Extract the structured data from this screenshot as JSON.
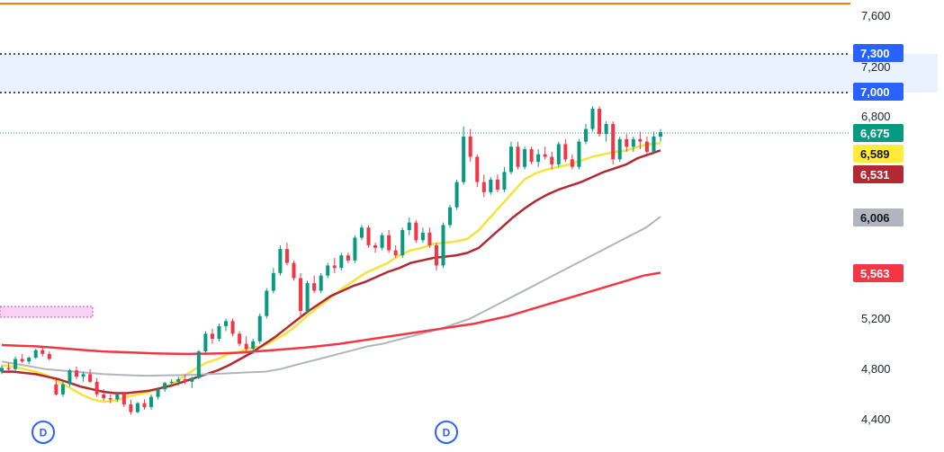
{
  "chart_data": {
    "type": "candlestick",
    "y_axis": {
      "ticks": [
        {
          "value": 7600,
          "label": "7,600"
        },
        {
          "value": 7200,
          "label": "7,200"
        },
        {
          "value": 6800,
          "label": "6,800"
        },
        {
          "value": 5200,
          "label": "5,200"
        },
        {
          "value": 4800,
          "label": "4,800"
        },
        {
          "value": 4400,
          "label": "4,400"
        }
      ],
      "range": [
        4330,
        7760
      ]
    },
    "price_levels": {
      "orange_line": 7700,
      "zone_top": 7300,
      "zone_bottom": 7000,
      "current_price": 6675,
      "pink_zone": [
        5250,
        5330
      ]
    },
    "badges": [
      {
        "name": "level-7300",
        "label": "7,300",
        "value": 7300,
        "color": "#2962ff",
        "text_color": "#ffffff"
      },
      {
        "name": "level-7000",
        "label": "7,000",
        "value": 7000,
        "color": "#2962ff",
        "text_color": "#ffffff"
      },
      {
        "name": "last-price",
        "label": "6,675",
        "value": 6675,
        "color": "#089981",
        "text_color": "#ffffff"
      },
      {
        "name": "ma-yellow",
        "label": "6,589",
        "value": 6589,
        "color": "#ffeb3b",
        "text_color": "#131722"
      },
      {
        "name": "ma-darkred",
        "label": "6,531",
        "value": 6531,
        "color": "#b22833",
        "text_color": "#ffffff"
      },
      {
        "name": "ma-gray",
        "label": "6,006",
        "value": 6006,
        "color": "#b2b5be",
        "text_color": "#131722"
      },
      {
        "name": "ma-red",
        "label": "5,563",
        "value": 5563,
        "color": "#f23645",
        "text_color": "#ffffff"
      }
    ],
    "series": [
      {
        "color": "#f5e33a",
        "values": [
          4830,
          4820,
          4800,
          4780,
          4750,
          4700,
          4650,
          4600,
          4560,
          4540,
          4550,
          4580,
          4600,
          4620,
          4650,
          4680,
          4740,
          4800,
          4850,
          4880,
          4920,
          4940,
          4970,
          4980,
          5030,
          5080,
          5150,
          5230,
          5300,
          5370,
          5440,
          5500,
          5560,
          5600,
          5640,
          5700,
          5740,
          5760,
          5790,
          5800,
          5810,
          5830,
          5900,
          6000,
          6100,
          6200,
          6300,
          6350,
          6380,
          6400,
          6420,
          6450,
          6480,
          6500,
          6520,
          6530,
          6560,
          6580,
          6589
        ]
      },
      {
        "color": "#b22833",
        "values": [
          4780,
          4780,
          4770,
          4760,
          4740,
          4720,
          4690,
          4660,
          4640,
          4620,
          4610,
          4610,
          4620,
          4630,
          4650,
          4670,
          4700,
          4730,
          4760,
          4790,
          4830,
          4880,
          4930,
          4990,
          5050,
          5120,
          5190,
          5260,
          5320,
          5380,
          5420,
          5460,
          5490,
          5530,
          5570,
          5600,
          5640,
          5660,
          5680,
          5690,
          5700,
          5720,
          5760,
          5840,
          5920,
          6000,
          6070,
          6130,
          6180,
          6220,
          6250,
          6280,
          6320,
          6360,
          6390,
          6420,
          6470,
          6500,
          6531
        ]
      },
      {
        "color": "#b2b5be",
        "values": [
          4860,
          4840,
          4820,
          4800,
          4790,
          4780,
          4770,
          4760,
          4755,
          4750,
          4748,
          4750,
          4752,
          4755,
          4760,
          4765,
          4770,
          4775,
          4780,
          4800,
          4830,
          4860,
          4890,
          4920,
          4950,
          4980,
          5000,
          5030,
          5060,
          5090,
          5120,
          5160,
          5200,
          5260,
          5320,
          5380,
          5440,
          5500,
          5560,
          5620,
          5680,
          5740,
          5800,
          5860,
          5920,
          6006
        ]
      },
      {
        "color": "#f23645",
        "values": [
          4990,
          4985,
          4980,
          4970,
          4960,
          4950,
          4940,
          4935,
          4930,
          4925,
          4922,
          4920,
          4922,
          4925,
          4930,
          4940,
          4950,
          4960,
          4970,
          4985,
          5000,
          5020,
          5040,
          5060,
          5080,
          5100,
          5120,
          5140,
          5160,
          5190,
          5220,
          5260,
          5300,
          5340,
          5380,
          5420,
          5460,
          5500,
          5540,
          5563
        ]
      }
    ],
    "dividend_markers": [
      "D",
      "D"
    ],
    "candles": [
      [
        4780,
        4830,
        4760,
        4810
      ],
      [
        4810,
        4850,
        4790,
        4800
      ],
      [
        4800,
        4900,
        4780,
        4880
      ],
      [
        4880,
        4920,
        4850,
        4860
      ],
      [
        4860,
        4900,
        4840,
        4890
      ],
      [
        4890,
        4960,
        4880,
        4950
      ],
      [
        4950,
        4980,
        4900,
        4920
      ],
      [
        4920,
        4940,
        4870,
        4880
      ],
      [
        4680,
        4720,
        4590,
        4600
      ],
      [
        4600,
        4700,
        4580,
        4680
      ],
      [
        4680,
        4800,
        4660,
        4790
      ],
      [
        4790,
        4820,
        4720,
        4740
      ],
      [
        4740,
        4780,
        4700,
        4760
      ],
      [
        4760,
        4800,
        4690,
        4700
      ],
      [
        4700,
        4730,
        4580,
        4600
      ],
      [
        4600,
        4640,
        4550,
        4570
      ],
      [
        4570,
        4600,
        4530,
        4560
      ],
      [
        4560,
        4620,
        4540,
        4600
      ],
      [
        4600,
        4620,
        4500,
        4520
      ],
      [
        4520,
        4560,
        4440,
        4460
      ],
      [
        4460,
        4540,
        4450,
        4530
      ],
      [
        4530,
        4560,
        4480,
        4500
      ],
      [
        4500,
        4600,
        4480,
        4580
      ],
      [
        4580,
        4650,
        4560,
        4640
      ],
      [
        4640,
        4700,
        4620,
        4690
      ],
      [
        4690,
        4720,
        4660,
        4700
      ],
      [
        4700,
        4740,
        4670,
        4720
      ],
      [
        4720,
        4760,
        4680,
        4700
      ],
      [
        4700,
        4740,
        4650,
        4730
      ],
      [
        4730,
        4950,
        4720,
        4940
      ],
      [
        4940,
        5100,
        4930,
        5080
      ],
      [
        5080,
        5120,
        5000,
        5040
      ],
      [
        5040,
        5160,
        5020,
        5140
      ],
      [
        5140,
        5200,
        5100,
        5180
      ],
      [
        5180,
        5200,
        5060,
        5080
      ],
      [
        5080,
        5100,
        4980,
        5000
      ],
      [
        5000,
        5060,
        4940,
        4960
      ],
      [
        4960,
        5040,
        4920,
        5020
      ],
      [
        5020,
        5240,
        5000,
        5220
      ],
      [
        5220,
        5440,
        5200,
        5420
      ],
      [
        5420,
        5600,
        5400,
        5560
      ],
      [
        5560,
        5780,
        5540,
        5750
      ],
      [
        5750,
        5800,
        5620,
        5640
      ],
      [
        5640,
        5660,
        5500,
        5520
      ],
      [
        5520,
        5560,
        5200,
        5260
      ],
      [
        5260,
        5500,
        5240,
        5480
      ],
      [
        5480,
        5540,
        5400,
        5420
      ],
      [
        5420,
        5560,
        5400,
        5540
      ],
      [
        5540,
        5640,
        5520,
        5620
      ],
      [
        5620,
        5680,
        5560,
        5600
      ],
      [
        5600,
        5720,
        5580,
        5700
      ],
      [
        5700,
        5720,
        5640,
        5660
      ],
      [
        5660,
        5860,
        5640,
        5840
      ],
      [
        5840,
        5940,
        5820,
        5920
      ],
      [
        5920,
        5940,
        5760,
        5780
      ],
      [
        5780,
        5800,
        5720,
        5760
      ],
      [
        5760,
        5880,
        5740,
        5860
      ],
      [
        5860,
        5900,
        5720,
        5740
      ],
      [
        5740,
        5780,
        5680,
        5700
      ],
      [
        5700,
        5920,
        5680,
        5900
      ],
      [
        5900,
        6000,
        5860,
        5960
      ],
      [
        5960,
        5980,
        5800,
        5820
      ],
      [
        5820,
        5920,
        5800,
        5880
      ],
      [
        5880,
        5920,
        5760,
        5780
      ],
      [
        5780,
        5800,
        5580,
        5620
      ],
      [
        5620,
        5960,
        5600,
        5940
      ],
      [
        5940,
        6100,
        5920,
        6080
      ],
      [
        6080,
        6300,
        6060,
        6280
      ],
      [
        6280,
        6720,
        6260,
        6640
      ],
      [
        6640,
        6700,
        6440,
        6480
      ],
      [
        6480,
        6500,
        6240,
        6280
      ],
      [
        6280,
        6340,
        6160,
        6200
      ],
      [
        6200,
        6320,
        6180,
        6300
      ],
      [
        6300,
        6340,
        6200,
        6220
      ],
      [
        6220,
        6400,
        6200,
        6360
      ],
      [
        6360,
        6600,
        6340,
        6560
      ],
      [
        6560,
        6600,
        6380,
        6400
      ],
      [
        6400,
        6560,
        6380,
        6540
      ],
      [
        6540,
        6560,
        6420,
        6440
      ],
      [
        6440,
        6540,
        6400,
        6500
      ],
      [
        6500,
        6560,
        6460,
        6480
      ],
      [
        6480,
        6520,
        6380,
        6420
      ],
      [
        6420,
        6600,
        6400,
        6580
      ],
      [
        6580,
        6620,
        6440,
        6460
      ],
      [
        6460,
        6500,
        6380,
        6400
      ],
      [
        6400,
        6620,
        6380,
        6600
      ],
      [
        6600,
        6740,
        6580,
        6700
      ],
      [
        6700,
        6880,
        6680,
        6860
      ],
      [
        6860,
        6880,
        6640,
        6660
      ],
      [
        6660,
        6760,
        6600,
        6740
      ],
      [
        6740,
        6760,
        6420,
        6460
      ],
      [
        6460,
        6640,
        6440,
        6620
      ],
      [
        6620,
        6660,
        6520,
        6560
      ],
      [
        6560,
        6640,
        6520,
        6620
      ],
      [
        6620,
        6680,
        6540,
        6600
      ],
      [
        6600,
        6640,
        6500,
        6520
      ],
      [
        6520,
        6680,
        6500,
        6640
      ],
      [
        6640,
        6700,
        6600,
        6675
      ]
    ]
  }
}
